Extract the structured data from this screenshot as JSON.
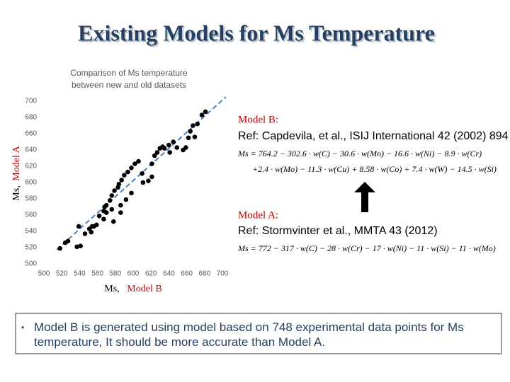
{
  "title": "Existing Models for Ms Temperature",
  "chart_data": {
    "type": "scatter",
    "title": "Comparison of Ms temperature",
    "subtitle": "between new and old datasets",
    "y_label": {
      "prefix": "Ms,",
      "name": "Model A"
    },
    "x_label": {
      "prefix": "Ms,",
      "name": "Model B"
    },
    "xlim": [
      500,
      700
    ],
    "ylim": [
      500,
      700
    ],
    "xticks": [
      500,
      520,
      540,
      560,
      580,
      600,
      620,
      640,
      660,
      680,
      700
    ],
    "yticks": [
      500,
      520,
      540,
      560,
      580,
      600,
      620,
      640,
      660,
      680,
      700
    ],
    "color": "#000000",
    "x": [
      518,
      524,
      527,
      537,
      541,
      551,
      553,
      554,
      556,
      559,
      562,
      567,
      568,
      570,
      574,
      576,
      579,
      583,
      584,
      587,
      590,
      594,
      598,
      602,
      606,
      610,
      621,
      624,
      627,
      630,
      633,
      640,
      645,
      649,
      659,
      662,
      664,
      667,
      669,
      672,
      677,
      681,
      570,
      576,
      586,
      592,
      598,
      611,
      617,
      621,
      635,
      641,
      656,
      586,
      567,
      578,
      539,
      546
    ],
    "values": [
      519,
      526,
      528,
      521,
      522,
      543,
      539,
      546,
      546,
      548,
      559,
      565,
      570,
      572,
      578,
      584,
      590,
      594,
      598,
      603,
      609,
      613,
      618,
      623,
      626,
      611,
      623,
      633,
      637,
      642,
      644,
      646,
      650,
      643,
      643,
      655,
      663,
      670,
      656,
      672,
      683,
      687,
      563,
      567,
      572,
      579,
      587,
      600,
      602,
      607,
      642,
      637,
      640,
      563,
      555,
      552,
      546,
      537
    ]
  },
  "model_b": {
    "name": "Model B:",
    "ref": "Ref: Capdevila, et al., ISIJ International 42 (2002) 894",
    "formula_1": "Ms = 764.2 − 302.6 · w(C) − 30.6 · w(Mn) − 16.6 · w(Ni) − 8.9 · w(Cr)",
    "formula_2": "+2.4 · w(Mo) − 11.3 · w(Cu) + 8.58 · w(Co) + 7.4 · w(W) − 14.5 · w(Si)"
  },
  "model_a": {
    "name": "Model A:",
    "ref": "Ref: Stormvinter et al., MMTA 43 (2012)",
    "formula": "Ms = 772 − 317 · w(C) − 28 · w(Cr) − 17 · w(Ni) − 11 · w(Si) − 11 · w(Mo)"
  },
  "bullet": "Model B is generated using model based on 748 experimental data points for Ms temperature, It should be more accurate than Model A."
}
